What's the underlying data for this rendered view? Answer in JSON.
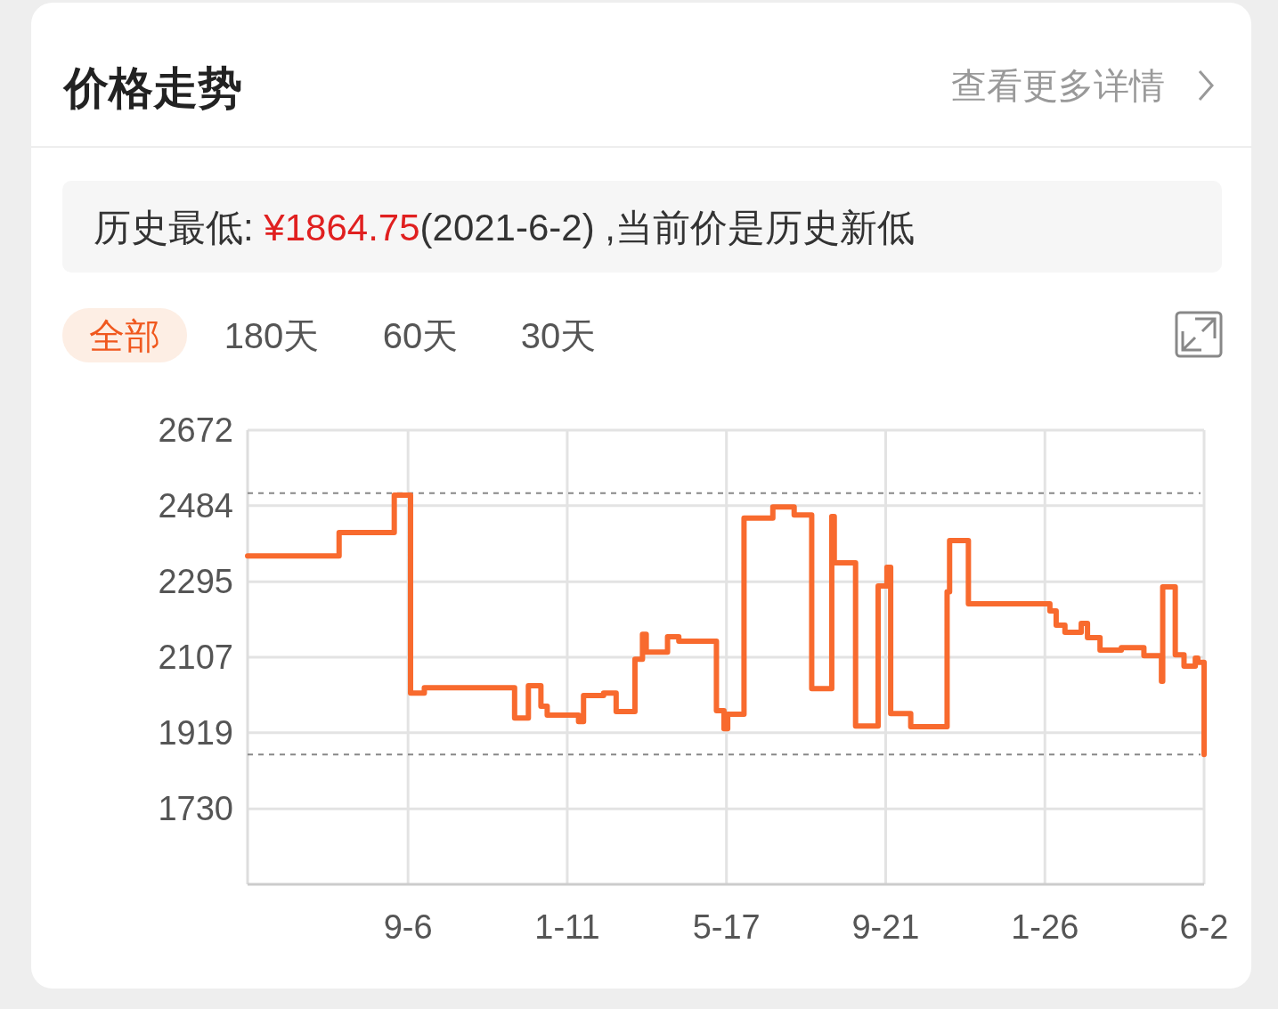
{
  "chart_data": {
    "type": "step",
    "title": "价格走势",
    "annotations": [
      "查看更多详情",
      "历史最低: ",
      "¥1864.75",
      "(2021-6-2) ,当前价是历史新低",
      "全部",
      "180天",
      "60天",
      "30天"
    ],
    "x": [
      "2019-05-01",
      "2019-07-13",
      "2019-08-26",
      "2019-09-08",
      "2019-09-19",
      "2019-11-30",
      "2019-12-11",
      "2019-12-21",
      "2019-12-26",
      "2020-01-20",
      "2020-01-24",
      "2020-02-09",
      "2020-02-19",
      "2020-03-05",
      "2020-03-11",
      "2020-03-14",
      "2020-03-31",
      "2020-04-09",
      "2020-05-09",
      "2020-05-15",
      "2020-05-18",
      "2020-05-31",
      "2020-06-23",
      "2020-07-10",
      "2020-07-24",
      "2020-08-09",
      "2020-08-11",
      "2020-08-28",
      "2020-09-15",
      "2020-09-22",
      "2020-09-25",
      "2020-10-11",
      "2020-11-09",
      "2020-11-11",
      "2020-11-26",
      "2021-01-30",
      "2021-02-04",
      "2021-02-11",
      "2021-02-24",
      "2021-03-01",
      "2021-03-11",
      "2021-03-28",
      "2021-04-15",
      "2021-04-29",
      "2021-04-30",
      "2021-05-10",
      "2021-05-17",
      "2021-05-26",
      "2021-05-28",
      "2021-06-02"
    ],
    "series": [
      {
        "color": "#f86a2e",
        "values": [
          2359,
          2417,
          2510,
          2018,
          2031,
          1956,
          2036,
          1985,
          1963,
          1947,
          2012,
          2018,
          1972,
          2102,
          2164,
          2120,
          2158,
          2147,
          1974,
          1929,
          1965,
          2453,
          2481,
          2461,
          2029,
          2457,
          2342,
          1936,
          2284,
          2331,
          1967,
          1934,
          2270,
          2397,
          2240,
          2222,
          2187,
          2169,
          2191,
          2156,
          2125,
          2131,
          2111,
          2047,
          2282,
          2113,
          2085,
          2105,
          2094,
          1864.75
        ]
      }
    ],
    "xlim": [
      "2019-05-01",
      "2021-06-02"
    ],
    "xticks": [
      {
        "value": "2019-09-06",
        "label": "9-6"
      },
      {
        "value": "2020-01-11",
        "label": "1-11"
      },
      {
        "value": "2020-05-17",
        "label": "5-17"
      },
      {
        "value": "2020-09-21",
        "label": "9-21"
      },
      {
        "value": "2021-01-26",
        "label": "1-26"
      },
      {
        "value": "2021-06-02",
        "label": "6-2"
      }
    ],
    "ylim": [
      1542,
      2672
    ],
    "yticks": [
      1730,
      1919,
      2107,
      2295,
      2484,
      2672
    ],
    "grid": true,
    "ref_lines": [
      {
        "axis": "y",
        "value": 2515,
        "color": "#888888",
        "line_style": "dashed"
      },
      {
        "axis": "y",
        "value": 1864.75,
        "color": "#888888",
        "line_style": "dashed"
      }
    ]
  }
}
